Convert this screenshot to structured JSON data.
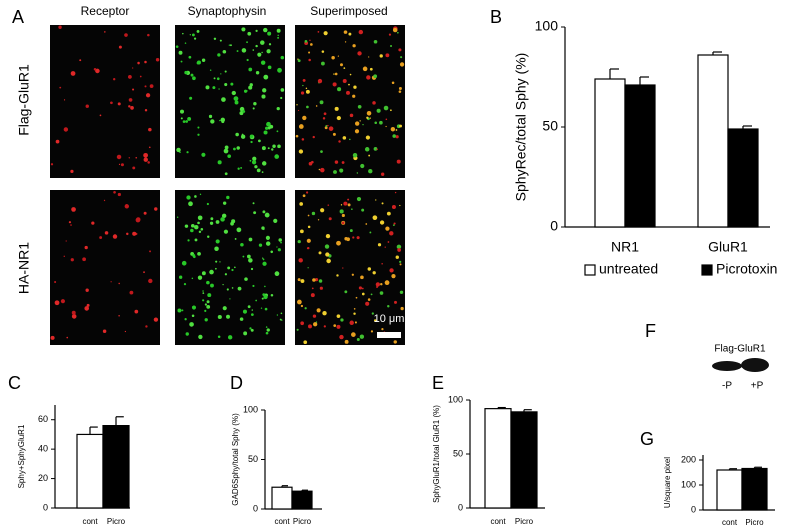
{
  "micrographs": {
    "label": "A",
    "columns": [
      "Receptor",
      "Synaptophysin",
      "Superimposed"
    ],
    "rows": [
      "Flag-GluR1",
      "HA-NR1"
    ],
    "scale_bar": "10 μm"
  },
  "chart_data": [
    {
      "label": "B",
      "type": "bar",
      "ylabel": "SphyRec/total Sphy  (%)",
      "categories": [
        "NR1",
        "GluR1"
      ],
      "series": [
        {
          "name": "untreated",
          "color": "#ffffff",
          "values": [
            74,
            86
          ],
          "errors": [
            5,
            1.5
          ]
        },
        {
          "name": "Picrotoxin",
          "color": "#000000",
          "values": [
            71,
            49
          ],
          "errors": [
            4,
            1.5
          ]
        }
      ],
      "ylim": [
        0,
        100
      ],
      "yticks": [
        0,
        50,
        100
      ],
      "legend": "bottom"
    },
    {
      "label": "C",
      "type": "bar",
      "ylabel": "Sphy+SphyGluR1",
      "categories": [
        "cont",
        "Picro"
      ],
      "values": [
        50,
        56
      ],
      "errors": [
        5,
        6
      ],
      "colors": [
        "#ffffff",
        "#000000"
      ],
      "ylim": [
        0,
        70
      ],
      "yticks": [
        0,
        20,
        40,
        60
      ]
    },
    {
      "label": "D",
      "type": "bar",
      "ylabel": "GAD6Sphy/total Sphy (%)",
      "categories": [
        "cont",
        "Picro"
      ],
      "values": [
        22,
        18
      ],
      "errors": [
        1.5,
        1
      ],
      "colors": [
        "#ffffff",
        "#000000"
      ],
      "ylim": [
        0,
        100
      ],
      "yticks": [
        0,
        50,
        100
      ]
    },
    {
      "label": "E",
      "type": "bar",
      "ylabel": "SphyGluR1/total GluR1 (%)",
      "categories": [
        "cont",
        "Picro"
      ],
      "values": [
        92,
        89
      ],
      "errors": [
        1,
        2
      ],
      "colors": [
        "#ffffff",
        "#000000"
      ],
      "ylim": [
        0,
        100
      ],
      "yticks": [
        0,
        50,
        100
      ]
    },
    {
      "label": "G",
      "type": "bar",
      "ylabel": "U/square pixel",
      "categories": [
        "cont",
        "Picro"
      ],
      "values": [
        160,
        166
      ],
      "errors": [
        5,
        5
      ],
      "colors": [
        "#ffffff",
        "#000000"
      ],
      "ylim": [
        0,
        220
      ],
      "yticks": [
        0,
        100,
        200
      ]
    }
  ],
  "blot": {
    "label": "F",
    "title": "Flag-GluR1",
    "lanes": [
      "-P",
      "+P"
    ]
  }
}
